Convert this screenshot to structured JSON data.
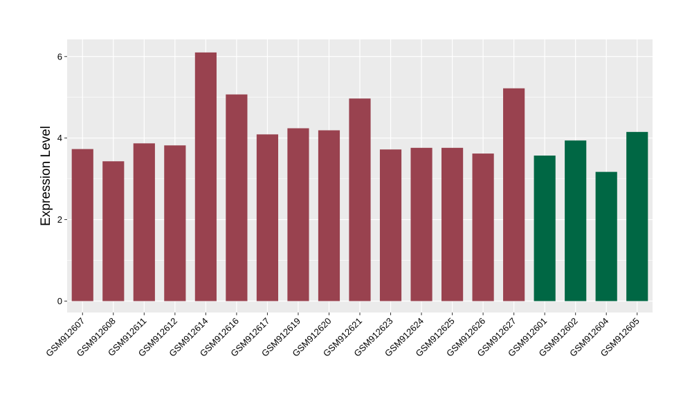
{
  "chart_data": {
    "type": "bar",
    "ylabel": "Expression Level",
    "xlabel": "",
    "ylim": [
      -0.28,
      6.42
    ],
    "yticks": [
      0,
      2,
      4,
      6
    ],
    "grid": true,
    "legend": "none",
    "categories": [
      "GSM912607",
      "GSM912608",
      "GSM912611",
      "GSM912612",
      "GSM912614",
      "GSM912616",
      "GSM912617",
      "GSM912619",
      "GSM912620",
      "GSM912621",
      "GSM912623",
      "GSM912624",
      "GSM912625",
      "GSM912626",
      "GSM912627",
      "GSM912601",
      "GSM912602",
      "GSM912604",
      "GSM912605"
    ],
    "values": [
      3.73,
      3.43,
      3.87,
      3.82,
      6.1,
      5.07,
      4.09,
      4.24,
      4.19,
      4.97,
      3.72,
      3.76,
      3.76,
      3.62,
      5.22,
      3.57,
      3.94,
      3.17,
      4.15
    ],
    "groups": [
      "a",
      "a",
      "a",
      "a",
      "a",
      "a",
      "a",
      "a",
      "a",
      "a",
      "a",
      "a",
      "a",
      "a",
      "a",
      "b",
      "b",
      "b",
      "b"
    ],
    "group_colors": {
      "a": "#99424f",
      "b": "#006744"
    },
    "panel_color": "#ebebeb",
    "grid_color": "#ffffff"
  }
}
